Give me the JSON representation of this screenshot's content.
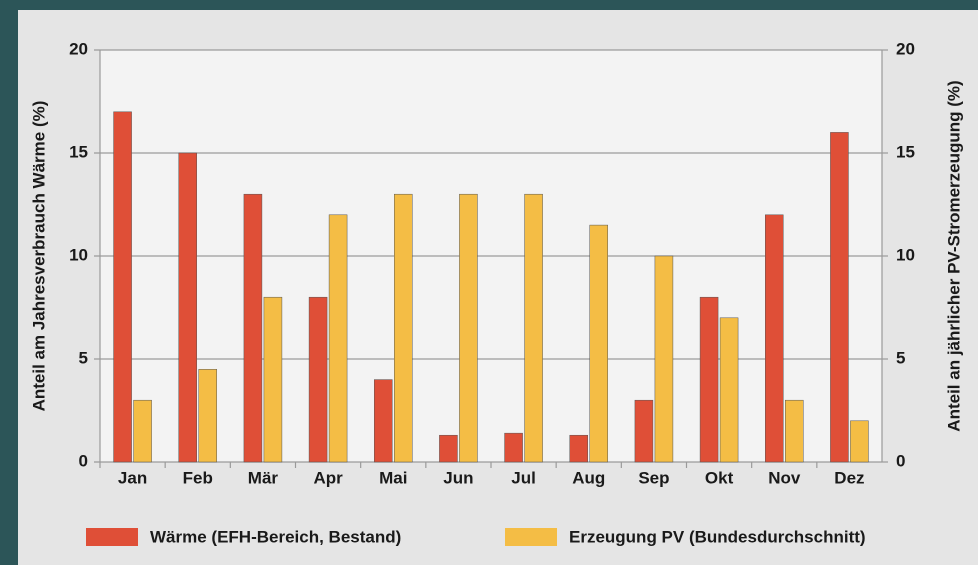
{
  "chart_data": {
    "type": "bar",
    "categories": [
      "Jan",
      "Feb",
      "Mär",
      "Apr",
      "Mai",
      "Jun",
      "Jul",
      "Aug",
      "Sep",
      "Okt",
      "Nov",
      "Dez"
    ],
    "series": [
      {
        "name": "Wärme (EFH-Bereich, Bestand)",
        "color": "#df4f37",
        "values": [
          17,
          15,
          13,
          8,
          4,
          1.3,
          1.4,
          1.3,
          3,
          8,
          12,
          16
        ]
      },
      {
        "name": "Erzeugung PV (Bundesdurchschnitt)",
        "color": "#f4bd45",
        "axis": "y2",
        "values": [
          3,
          4.5,
          8,
          12,
          13,
          13,
          13,
          11.5,
          10,
          7,
          3,
          2
        ]
      }
    ],
    "ylabel": "Anteil am Jahresverbrauch Wärme (%)",
    "y2label": "Anteil an jährlicher PV-Stromerzeugung (%)",
    "ylim": [
      0,
      20
    ],
    "yticks": [
      0,
      5,
      10,
      15,
      20
    ],
    "y2lim": [
      0,
      20
    ],
    "y2ticks": [
      0,
      5,
      10,
      15,
      20
    ],
    "grid": true,
    "legend": "bottom"
  }
}
